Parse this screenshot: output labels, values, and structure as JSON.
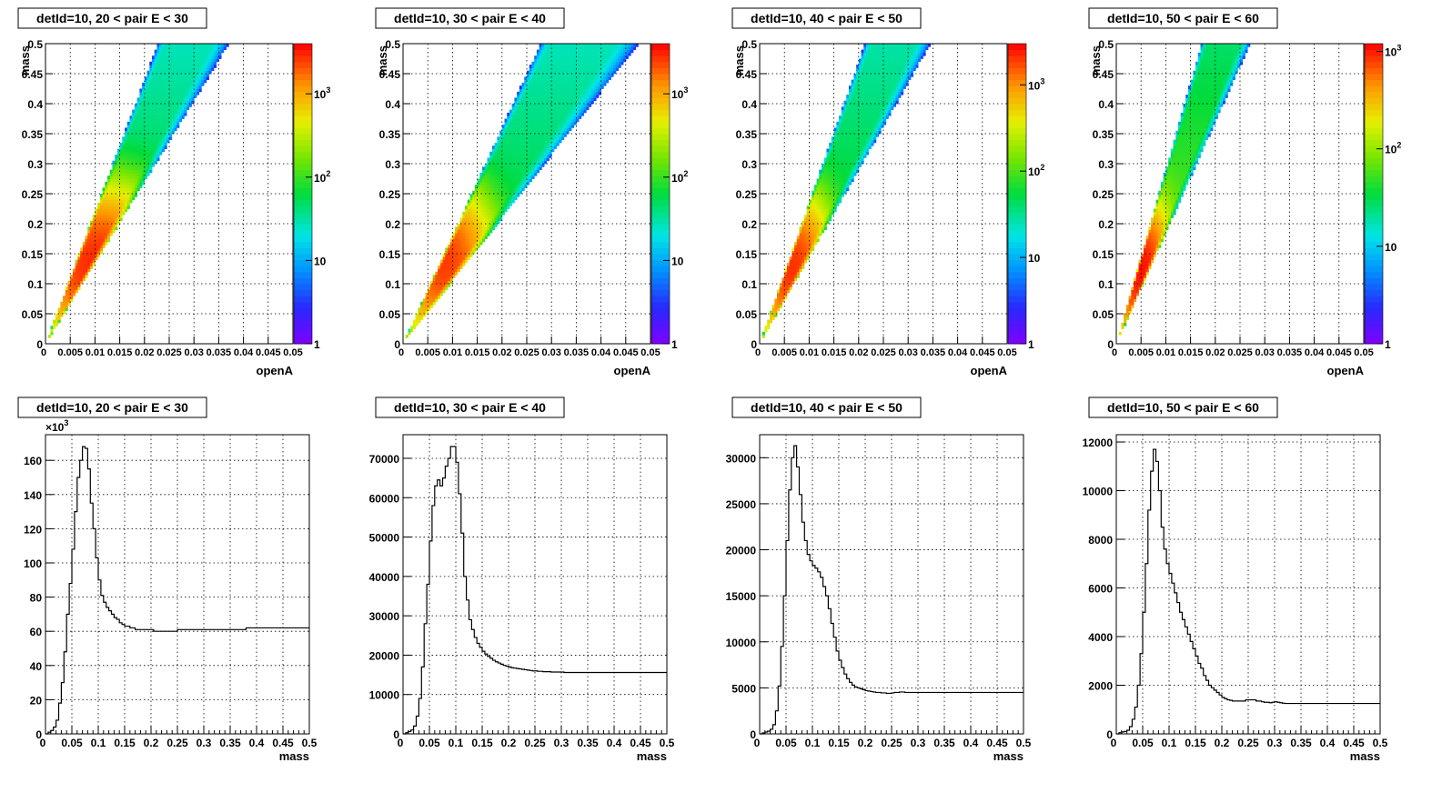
{
  "colors": {
    "background": "#ffffff",
    "frame": "#000000",
    "histogram_line": "#000000"
  },
  "chart_data": [
    {
      "type": "heatmap",
      "title": "detId=10, 20 < pair E < 30",
      "xlabel": "openA",
      "ylabel": "mass",
      "xlim": [
        0,
        0.05
      ],
      "ylim": [
        0,
        0.5
      ],
      "xticks": [
        "0",
        "0.005",
        "0.01",
        "0.015",
        "0.02",
        "0.025",
        "0.03",
        "0.035",
        "0.04",
        "0.045",
        "0.05"
      ],
      "yticks": [
        "0",
        "0.05",
        "0.1",
        "0.15",
        "0.2",
        "0.25",
        "0.3",
        "0.35",
        "0.4",
        "0.45",
        "0.5"
      ],
      "z_scale": "log",
      "z_range": [
        1,
        4000
      ],
      "z_ticks": [
        {
          "value": 1,
          "label": "1"
        },
        {
          "value": 10,
          "label": "10"
        },
        {
          "value": 100,
          "label": "10^2"
        },
        {
          "value": 1000,
          "label": "10^3"
        }
      ],
      "band": {
        "slope_low": 13.5,
        "slope_high": 22,
        "peak_openA": 0.011,
        "peak_mass": 0.13,
        "peak_count": 3000
      },
      "grid": true
    },
    {
      "type": "heatmap",
      "title": "detId=10, 30 < pair E < 40",
      "xlabel": "openA",
      "ylabel": "mass",
      "xlim": [
        0,
        0.05
      ],
      "ylim": [
        0,
        0.5
      ],
      "xticks": [
        "0",
        "0.005",
        "0.01",
        "0.015",
        "0.02",
        "0.025",
        "0.03",
        "0.035",
        "0.04",
        "0.045",
        "0.05"
      ],
      "yticks": [
        "0",
        "0.05",
        "0.1",
        "0.15",
        "0.2",
        "0.25",
        "0.3",
        "0.35",
        "0.4",
        "0.45",
        "0.5"
      ],
      "z_scale": "log",
      "z_range": [
        1,
        4000
      ],
      "z_ticks": [
        {
          "value": 1,
          "label": "1"
        },
        {
          "value": 10,
          "label": "10"
        },
        {
          "value": 100,
          "label": "10^2"
        },
        {
          "value": 1000,
          "label": "10^3"
        }
      ],
      "band": {
        "slope_low": 10.5,
        "slope_high": 18,
        "peak_openA": 0.008,
        "peak_mass": 0.14,
        "peak_count": 2500
      },
      "grid": true
    },
    {
      "type": "heatmap",
      "title": "detId=10, 40 < pair E < 50",
      "xlabel": "openA",
      "ylabel": "mass",
      "xlim": [
        0,
        0.05
      ],
      "ylim": [
        0,
        0.5
      ],
      "xticks": [
        "0",
        "0.005",
        "0.01",
        "0.015",
        "0.02",
        "0.025",
        "0.03",
        "0.035",
        "0.04",
        "0.045",
        "0.05"
      ],
      "yticks": [
        "0",
        "0.05",
        "0.1",
        "0.15",
        "0.2",
        "0.25",
        "0.3",
        "0.35",
        "0.4",
        "0.45",
        "0.5"
      ],
      "z_scale": "log",
      "z_range": [
        1,
        3000
      ],
      "z_ticks": [
        {
          "value": 1,
          "label": "1"
        },
        {
          "value": 10,
          "label": "10"
        },
        {
          "value": 100,
          "label": "10^2"
        },
        {
          "value": 1000,
          "label": "10^3"
        }
      ],
      "band": {
        "slope_low": 14.5,
        "slope_high": 23.5,
        "peak_openA": 0.0065,
        "peak_mass": 0.13,
        "peak_count": 2000
      },
      "grid": true
    },
    {
      "type": "heatmap",
      "title": "detId=10, 50 < pair E < 60",
      "xlabel": "openA",
      "ylabel": "mass",
      "xlim": [
        0,
        0.05
      ],
      "ylim": [
        0,
        0.5
      ],
      "xticks": [
        "0",
        "0.005",
        "0.01",
        "0.015",
        "0.02",
        "0.025",
        "0.03",
        "0.035",
        "0.04",
        "0.045",
        "0.05"
      ],
      "yticks": [
        "0",
        "0.05",
        "0.1",
        "0.15",
        "0.2",
        "0.25",
        "0.3",
        "0.35",
        "0.4",
        "0.45",
        "0.5"
      ],
      "z_scale": "log",
      "z_range": [
        1,
        1200
      ],
      "z_ticks": [
        {
          "value": 10,
          "label": "10"
        },
        {
          "value": 100,
          "label": "10^2"
        },
        {
          "value": 1000,
          "label": "10^3"
        },
        {
          "value": 1,
          "label": "1"
        }
      ],
      "band": {
        "slope_low": 18.5,
        "slope_high": 29,
        "peak_openA": 0.005,
        "peak_mass": 0.125,
        "peak_count": 1000
      },
      "grid": true
    },
    {
      "type": "histogram",
      "title": "detId=10, 20 < pair E < 30",
      "xlabel": "mass",
      "ylabel": "",
      "xlim": [
        0,
        0.5
      ],
      "ylim": [
        0,
        175
      ],
      "y_multiplier": "×10^3",
      "xticks": [
        "0",
        "0.05",
        "0.1",
        "0.15",
        "0.2",
        "0.25",
        "0.3",
        "0.35",
        "0.4",
        "0.45",
        "0.5"
      ],
      "yticks": [
        {
          "value": 0,
          "label": "0"
        },
        {
          "value": 20,
          "label": "20"
        },
        {
          "value": 40,
          "label": "40"
        },
        {
          "value": 60,
          "label": "60"
        },
        {
          "value": 80,
          "label": "80"
        },
        {
          "value": 100,
          "label": "100"
        },
        {
          "value": 120,
          "label": "120"
        },
        {
          "value": 140,
          "label": "140"
        },
        {
          "value": 160,
          "label": "160"
        }
      ],
      "bin_width": 0.005,
      "values": [
        0,
        1,
        2,
        4,
        8,
        18,
        30,
        48,
        70,
        88,
        108,
        130,
        150,
        160,
        168,
        167,
        155,
        135,
        120,
        103,
        90,
        81,
        77,
        74,
        72,
        70,
        68,
        67,
        65,
        64,
        63,
        63,
        62,
        62,
        61,
        61,
        61,
        61,
        61,
        61,
        61,
        60,
        60,
        60,
        60,
        60,
        60,
        60,
        60,
        60,
        61,
        61,
        61,
        61,
        61,
        61,
        61,
        61,
        61,
        61,
        61,
        61,
        61,
        61,
        61,
        61,
        61,
        61,
        61,
        61,
        61,
        61,
        61,
        61,
        61,
        61,
        62,
        62,
        62,
        62,
        62,
        62,
        62,
        62,
        62,
        62,
        62,
        62,
        62,
        62,
        62,
        62,
        62,
        62,
        62,
        62,
        62,
        62,
        62,
        62
      ],
      "grid": true
    },
    {
      "type": "histogram",
      "title": "detId=10, 30 < pair E < 40",
      "xlabel": "mass",
      "ylabel": "",
      "xlim": [
        0,
        0.5
      ],
      "ylim": [
        0,
        76000
      ],
      "y_multiplier": "",
      "xticks": [
        "0",
        "0.05",
        "0.1",
        "0.15",
        "0.2",
        "0.25",
        "0.3",
        "0.35",
        "0.4",
        "0.45",
        "0.5"
      ],
      "yticks": [
        {
          "value": 0,
          "label": "0"
        },
        {
          "value": 10000,
          "label": "10000"
        },
        {
          "value": 20000,
          "label": "20000"
        },
        {
          "value": 30000,
          "label": "30000"
        },
        {
          "value": 40000,
          "label": "40000"
        },
        {
          "value": 50000,
          "label": "50000"
        },
        {
          "value": 60000,
          "label": "60000"
        },
        {
          "value": 70000,
          "label": "70000"
        }
      ],
      "bin_width": 0.005,
      "values": [
        0,
        300,
        600,
        1000,
        2000,
        4500,
        9000,
        17000,
        28000,
        38000,
        49000,
        58000,
        63000,
        64500,
        63000,
        65000,
        68000,
        70000,
        73000,
        73000,
        69000,
        61000,
        51000,
        40000,
        34000,
        29000,
        26500,
        24500,
        23000,
        22000,
        21000,
        20300,
        19700,
        19200,
        18700,
        18300,
        18000,
        17700,
        17400,
        17200,
        17000,
        16800,
        16700,
        16600,
        16500,
        16400,
        16300,
        16200,
        16100,
        16000,
        16000,
        15900,
        15900,
        15800,
        15800,
        15800,
        15700,
        15700,
        15700,
        15700,
        15700,
        15600,
        15600,
        15600,
        15600,
        15600,
        15600,
        15600,
        15600,
        15600,
        15600,
        15600,
        15600,
        15600,
        15600,
        15600,
        15600,
        15600,
        15600,
        15600,
        15600,
        15600,
        15600,
        15600,
        15600,
        15600,
        15600,
        15600,
        15600,
        15600,
        15600,
        15600,
        15600,
        15600,
        15600,
        15600,
        15600,
        15600,
        15600,
        15600
      ],
      "grid": true
    },
    {
      "type": "histogram",
      "title": "detId=10, 40 < pair E < 50",
      "xlabel": "mass",
      "ylabel": "",
      "xlim": [
        0,
        0.5
      ],
      "ylim": [
        0,
        32500
      ],
      "y_multiplier": "",
      "xticks": [
        "0",
        "0.05",
        "0.1",
        "0.15",
        "0.2",
        "0.25",
        "0.3",
        "0.35",
        "0.4",
        "0.45",
        "0.5"
      ],
      "yticks": [
        {
          "value": 0,
          "label": "0"
        },
        {
          "value": 5000,
          "label": "5000"
        },
        {
          "value": 10000,
          "label": "10000"
        },
        {
          "value": 15000,
          "label": "15000"
        },
        {
          "value": 20000,
          "label": "20000"
        },
        {
          "value": 25000,
          "label": "25000"
        },
        {
          "value": 30000,
          "label": "30000"
        }
      ],
      "bin_width": 0.005,
      "values": [
        0,
        100,
        200,
        300,
        500,
        1000,
        2500,
        5200,
        9500,
        15000,
        21000,
        26500,
        30000,
        31300,
        29000,
        26000,
        23000,
        21000,
        19500,
        18800,
        18300,
        18000,
        17600,
        17000,
        16000,
        15000,
        13600,
        12000,
        10500,
        9000,
        8000,
        7200,
        6500,
        6000,
        5600,
        5300,
        5100,
        5000,
        4900,
        4800,
        4700,
        4650,
        4600,
        4550,
        4500,
        4500,
        4450,
        4450,
        4400,
        4400,
        4450,
        4500,
        4500,
        4550,
        4550,
        4500,
        4500,
        4500,
        4500,
        4500,
        4500,
        4500,
        4500,
        4500,
        4500,
        4500,
        4500,
        4500,
        4500,
        4500,
        4500,
        4500,
        4500,
        4500,
        4500,
        4500,
        4500,
        4500,
        4500,
        4500,
        4500,
        4500,
        4500,
        4500,
        4500,
        4500,
        4500,
        4500,
        4500,
        4500,
        4500,
        4500,
        4500,
        4500,
        4500,
        4500,
        4500,
        4500,
        4500,
        4500
      ],
      "grid": true
    },
    {
      "type": "histogram",
      "title": "detId=10, 50 < pair E < 60",
      "xlabel": "mass",
      "ylabel": "",
      "xlim": [
        0,
        0.5
      ],
      "ylim": [
        0,
        12300
      ],
      "y_multiplier": "",
      "xticks": [
        "0",
        "0.05",
        "0.1",
        "0.15",
        "0.2",
        "0.25",
        "0.3",
        "0.35",
        "0.4",
        "0.45",
        "0.5"
      ],
      "yticks": [
        {
          "value": 0,
          "label": "0"
        },
        {
          "value": 2000,
          "label": "2000"
        },
        {
          "value": 4000,
          "label": "4000"
        },
        {
          "value": 6000,
          "label": "6000"
        },
        {
          "value": 8000,
          "label": "8000"
        },
        {
          "value": 10000,
          "label": "10000"
        },
        {
          "value": 12000,
          "label": "12000"
        }
      ],
      "bin_width": 0.005,
      "values": [
        0,
        50,
        80,
        100,
        150,
        300,
        600,
        1100,
        2000,
        3300,
        5000,
        7000,
        9200,
        10800,
        11700,
        11200,
        10000,
        8500,
        7600,
        7000,
        6600,
        6200,
        5800,
        5400,
        5000,
        4700,
        4400,
        4100,
        3800,
        3500,
        3200,
        2900,
        2700,
        2400,
        2200,
        2000,
        1900,
        1800,
        1700,
        1600,
        1500,
        1450,
        1400,
        1380,
        1350,
        1350,
        1350,
        1350,
        1350,
        1400,
        1400,
        1400,
        1400,
        1350,
        1350,
        1320,
        1300,
        1300,
        1280,
        1300,
        1320,
        1300,
        1280,
        1260,
        1250,
        1250,
        1250,
        1250,
        1250,
        1250,
        1250,
        1250,
        1250,
        1250,
        1250,
        1250,
        1250,
        1250,
        1250,
        1250,
        1250,
        1250,
        1250,
        1250,
        1250,
        1250,
        1250,
        1250,
        1250,
        1250,
        1250,
        1250,
        1250,
        1250,
        1250,
        1250,
        1250,
        1250,
        1250,
        1250
      ],
      "grid": true
    }
  ]
}
